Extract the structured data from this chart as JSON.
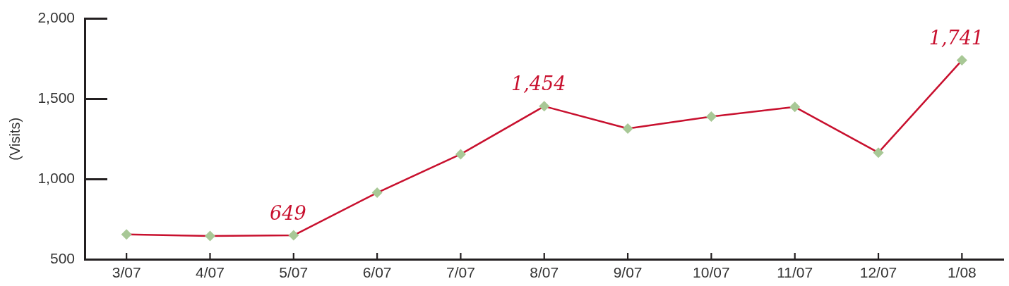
{
  "chart_data": {
    "type": "line",
    "ylabel": "(Visits)",
    "categories": [
      "3/07",
      "4/07",
      "5/07",
      "6/07",
      "7/07",
      "8/07",
      "9/07",
      "10/07",
      "11/07",
      "12/07",
      "1/08"
    ],
    "series": [
      {
        "color": "#c8102e",
        "colors": [
          "#a8c896",
          "#a8c896",
          "#a8c896",
          "#a8c896",
          "#a8c896",
          "#a8c896",
          "#a8c896",
          "#a8c896",
          "#a8c896",
          "#a8c896",
          "#a8c896"
        ],
        "values": [
          655,
          645,
          649,
          915,
          1155,
          1454,
          1315,
          1390,
          1450,
          1165,
          1741
        ],
        "value_labels": [
          null,
          null,
          "649",
          null,
          null,
          "1,454",
          null,
          null,
          null,
          null,
          "1,741"
        ]
      }
    ],
    "ylim": [
      500,
      2000
    ],
    "yticks": [
      500,
      {
        "value": 1000,
        "label": "1,000"
      },
      {
        "value": 1500,
        "label": "1,500"
      },
      {
        "value": 2000,
        "label": "2,000"
      }
    ],
    "marker": "diamond",
    "line_style": "solid",
    "grid": false,
    "legend": false
  }
}
